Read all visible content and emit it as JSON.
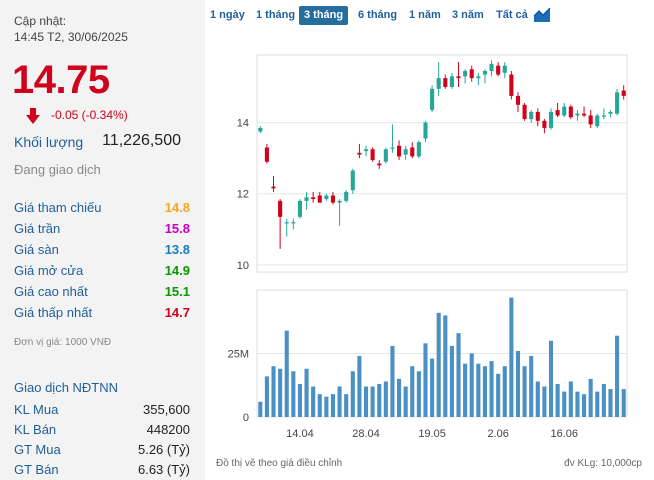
{
  "quote": {
    "updated_label": "Cập nhật:",
    "updated_time": "14:45 T2, 30/06/2025",
    "price": "14.75",
    "change": "-0.05 (-0.34%)",
    "volume_label": "Khối lượng",
    "volume": "11,226,500",
    "status": "Đang giao dịch",
    "colors": {
      "down": "#d0021b",
      "label": "#1e5f9c"
    }
  },
  "stats": [
    {
      "label": "Giá tham chiếu",
      "value": "14.8",
      "color": "#f5a623"
    },
    {
      "label": "Giá trần",
      "value": "15.8",
      "color": "#c800c8"
    },
    {
      "label": "Giá sàn",
      "value": "13.8",
      "color": "#1a7fb5"
    },
    {
      "label": "Giá mở cửa",
      "value": "14.9",
      "color": "#0a9900"
    },
    {
      "label": "Giá cao nhất",
      "value": "15.1",
      "color": "#0a9900"
    },
    {
      "label": "Giá thấp nhất",
      "value": "14.7",
      "color": "#d0021b"
    }
  ],
  "unit_note": "Đơn vị giá: 1000 VNĐ",
  "foreign": {
    "title": "Giao dịch NĐTNN",
    "rows": [
      {
        "label": "KL Mua",
        "value": "355,600"
      },
      {
        "label": "KL Bán",
        "value": "448200"
      },
      {
        "label": "GT Mua",
        "value": "5.26 (Tỷ)"
      },
      {
        "label": "GT Bán",
        "value": "6.63 (Tỷ)"
      }
    ]
  },
  "tabs": [
    {
      "label": "1 ngày",
      "active": false
    },
    {
      "label": "1 tháng",
      "active": false
    },
    {
      "label": "3 tháng",
      "active": true
    },
    {
      "label": "6 tháng",
      "active": false
    },
    {
      "label": "1 năm",
      "active": false
    },
    {
      "label": "3 năm",
      "active": false
    },
    {
      "label": "Tất cả",
      "active": false
    }
  ],
  "chart_icon": "area-chart-icon",
  "footer": {
    "adjusted_note": "Đồ thị vẽ theo giá điều chỉnh",
    "volume_unit": "đv KLg: 10,000cp"
  },
  "chart_data": {
    "type": "candlestick",
    "colors": {
      "up": "#26a69a",
      "down": "#d0021b",
      "volume": "#4a90c4",
      "grid": "#e6e6e6"
    },
    "price_axis": {
      "ticks": [
        10,
        12,
        14
      ],
      "ylim": [
        9.8,
        15.9
      ]
    },
    "volume_axis": {
      "ticks": [
        0,
        25
      ],
      "tick_labels": [
        "0",
        "25M"
      ],
      "ylim": [
        0,
        50
      ]
    },
    "x_tick_labels": [
      {
        "index": 6,
        "label": "14.04"
      },
      {
        "index": 16,
        "label": "28.04"
      },
      {
        "index": 26,
        "label": "19.05"
      },
      {
        "index": 36,
        "label": "2.06"
      },
      {
        "index": 46,
        "label": "16.06"
      }
    ],
    "candles": [
      {
        "o": 13.75,
        "h": 13.9,
        "l": 13.7,
        "c": 13.85,
        "v": 6
      },
      {
        "o": 13.3,
        "h": 13.4,
        "l": 12.85,
        "c": 12.9,
        "v": 16
      },
      {
        "o": 12.2,
        "h": 12.5,
        "l": 12.05,
        "c": 12.15,
        "v": 20
      },
      {
        "o": 11.8,
        "h": 11.85,
        "l": 10.45,
        "c": 11.35,
        "v": 19
      },
      {
        "o": 11.2,
        "h": 11.3,
        "l": 10.8,
        "c": 11.2,
        "v": 34
      },
      {
        "o": 11.2,
        "h": 11.3,
        "l": 11.0,
        "c": 11.2,
        "v": 18
      },
      {
        "o": 11.35,
        "h": 11.85,
        "l": 11.3,
        "c": 11.8,
        "v": 13
      },
      {
        "o": 11.8,
        "h": 12.05,
        "l": 11.55,
        "c": 11.9,
        "v": 19
      },
      {
        "o": 11.9,
        "h": 12.05,
        "l": 11.75,
        "c": 11.85,
        "v": 12
      },
      {
        "o": 11.95,
        "h": 12.05,
        "l": 11.75,
        "c": 11.75,
        "v": 9
      },
      {
        "o": 11.85,
        "h": 12.0,
        "l": 11.8,
        "c": 11.95,
        "v": 8
      },
      {
        "o": 11.95,
        "h": 12.05,
        "l": 11.7,
        "c": 11.75,
        "v": 9
      },
      {
        "o": 11.75,
        "h": 11.85,
        "l": 11.1,
        "c": 11.8,
        "v": 12
      },
      {
        "o": 11.8,
        "h": 12.1,
        "l": 11.75,
        "c": 12.05,
        "v": 9
      },
      {
        "o": 12.1,
        "h": 12.7,
        "l": 12.0,
        "c": 12.65,
        "v": 18
      },
      {
        "o": 13.15,
        "h": 13.4,
        "l": 13.0,
        "c": 13.1,
        "v": 24
      },
      {
        "o": 13.2,
        "h": 13.35,
        "l": 13.05,
        "c": 13.25,
        "v": 12
      },
      {
        "o": 13.25,
        "h": 13.3,
        "l": 12.9,
        "c": 12.95,
        "v": 12
      },
      {
        "o": 12.85,
        "h": 12.95,
        "l": 12.7,
        "c": 12.8,
        "v": 13
      },
      {
        "o": 12.9,
        "h": 13.3,
        "l": 12.85,
        "c": 13.25,
        "v": 14
      },
      {
        "o": 13.3,
        "h": 13.95,
        "l": 13.15,
        "c": 13.3,
        "v": 28
      },
      {
        "o": 13.35,
        "h": 13.5,
        "l": 12.95,
        "c": 13.05,
        "v": 15
      },
      {
        "o": 13.1,
        "h": 13.35,
        "l": 12.95,
        "c": 13.25,
        "v": 12
      },
      {
        "o": 13.3,
        "h": 13.45,
        "l": 13.0,
        "c": 13.05,
        "v": 20
      },
      {
        "o": 13.05,
        "h": 13.5,
        "l": 13.0,
        "c": 13.45,
        "v": 18
      },
      {
        "o": 13.55,
        "h": 14.05,
        "l": 13.45,
        "c": 14.0,
        "v": 29
      },
      {
        "o": 14.35,
        "h": 15.05,
        "l": 14.3,
        "c": 14.95,
        "v": 23
      },
      {
        "o": 14.95,
        "h": 15.7,
        "l": 14.75,
        "c": 15.25,
        "v": 41
      },
      {
        "o": 15.25,
        "h": 15.35,
        "l": 14.95,
        "c": 15.0,
        "v": 40
      },
      {
        "o": 15.0,
        "h": 15.4,
        "l": 14.95,
        "c": 15.3,
        "v": 28
      },
      {
        "o": 15.3,
        "h": 15.7,
        "l": 15.0,
        "c": 15.25,
        "v": 33
      },
      {
        "o": 15.3,
        "h": 15.5,
        "l": 15.1,
        "c": 15.45,
        "v": 21
      },
      {
        "o": 15.5,
        "h": 15.6,
        "l": 15.15,
        "c": 15.25,
        "v": 25
      },
      {
        "o": 15.25,
        "h": 15.4,
        "l": 15.05,
        "c": 15.3,
        "v": 21
      },
      {
        "o": 15.35,
        "h": 15.5,
        "l": 15.1,
        "c": 15.45,
        "v": 20
      },
      {
        "o": 15.45,
        "h": 15.75,
        "l": 15.3,
        "c": 15.65,
        "v": 22
      },
      {
        "o": 15.6,
        "h": 15.7,
        "l": 15.3,
        "c": 15.35,
        "v": 17
      },
      {
        "o": 15.4,
        "h": 15.7,
        "l": 15.25,
        "c": 15.6,
        "v": 20
      },
      {
        "o": 15.35,
        "h": 15.45,
        "l": 14.65,
        "c": 14.75,
        "v": 47
      },
      {
        "o": 14.75,
        "h": 14.85,
        "l": 14.3,
        "c": 14.5,
        "v": 26
      },
      {
        "o": 14.5,
        "h": 14.55,
        "l": 14.05,
        "c": 14.1,
        "v": 20
      },
      {
        "o": 14.1,
        "h": 14.35,
        "l": 14.0,
        "c": 14.3,
        "v": 24
      },
      {
        "o": 14.3,
        "h": 14.4,
        "l": 13.9,
        "c": 14.05,
        "v": 14
      },
      {
        "o": 14.05,
        "h": 14.1,
        "l": 13.7,
        "c": 13.85,
        "v": 12
      },
      {
        "o": 13.85,
        "h": 14.4,
        "l": 13.8,
        "c": 14.3,
        "v": 30
      },
      {
        "o": 14.35,
        "h": 14.55,
        "l": 14.15,
        "c": 14.2,
        "v": 13
      },
      {
        "o": 14.2,
        "h": 14.55,
        "l": 14.15,
        "c": 14.45,
        "v": 10
      },
      {
        "o": 14.45,
        "h": 14.5,
        "l": 14.1,
        "c": 14.15,
        "v": 14
      },
      {
        "o": 14.2,
        "h": 14.35,
        "l": 14.05,
        "c": 14.25,
        "v": 10
      },
      {
        "o": 14.25,
        "h": 14.45,
        "l": 14.15,
        "c": 14.2,
        "v": 9
      },
      {
        "o": 14.2,
        "h": 14.35,
        "l": 13.85,
        "c": 13.95,
        "v": 15
      },
      {
        "o": 13.9,
        "h": 14.25,
        "l": 13.85,
        "c": 14.2,
        "v": 10
      },
      {
        "o": 14.2,
        "h": 14.4,
        "l": 14.1,
        "c": 14.2,
        "v": 13
      },
      {
        "o": 14.25,
        "h": 14.35,
        "l": 14.15,
        "c": 14.3,
        "v": 11
      },
      {
        "o": 14.25,
        "h": 14.95,
        "l": 14.2,
        "c": 14.85,
        "v": 32
      },
      {
        "o": 14.9,
        "h": 15.05,
        "l": 14.65,
        "c": 14.75,
        "v": 11
      }
    ]
  }
}
